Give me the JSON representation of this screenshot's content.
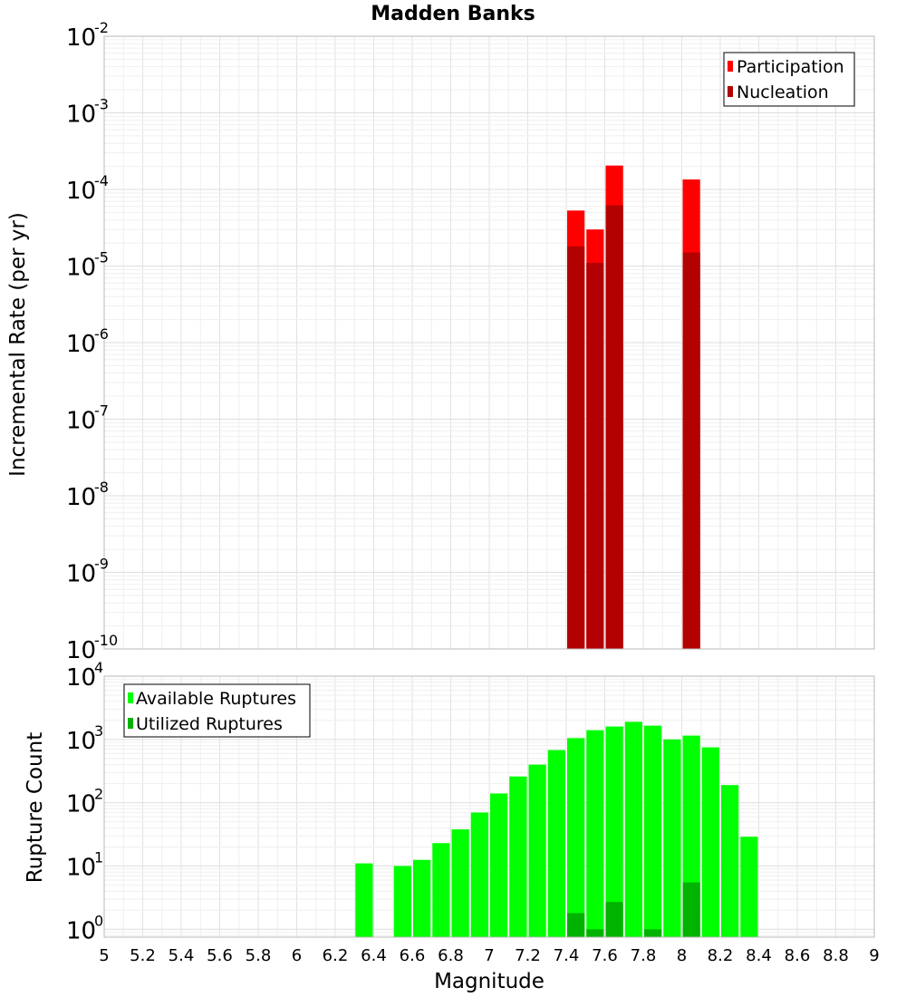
{
  "chart_data": [
    {
      "type": "bar",
      "title": "Madden Banks",
      "xlabel": "",
      "ylabel": "Incremental Rate (per yr)",
      "yscale": "log",
      "xlim": [
        5,
        9
      ],
      "ylim": [
        1e-10,
        0.01
      ],
      "grid": true,
      "legend_position": "top-right",
      "ytick_exponents": [
        "-2",
        "-3",
        "-4",
        "-5",
        "-6",
        "-7",
        "-8",
        "-9",
        "-10"
      ],
      "bin_width": 0.1,
      "series": [
        {
          "name": "Participation",
          "color": "#ff0000",
          "x": [
            7.45,
            7.55,
            7.65,
            8.05
          ],
          "values": [
            5.3e-05,
            3e-05,
            0.000205,
            0.000135
          ]
        },
        {
          "name": "Nucleation",
          "color": "#b30000",
          "x": [
            7.45,
            7.55,
            7.65,
            8.05
          ],
          "values": [
            1.8e-05,
            1.1e-05,
            6.2e-05,
            1.5e-05
          ]
        }
      ]
    },
    {
      "type": "bar",
      "title": "",
      "xlabel": "Magnitude",
      "ylabel": "Rupture Count",
      "yscale": "log",
      "xlim": [
        5,
        9
      ],
      "ylim": [
        0.75,
        10000
      ],
      "grid": true,
      "legend_position": "top-left",
      "xtick_labels": [
        "5",
        "5.2",
        "5.4",
        "5.6",
        "5.8",
        "6",
        "6.2",
        "6.4",
        "6.6",
        "6.8",
        "7",
        "7.2",
        "7.4",
        "7.6",
        "7.8",
        "8",
        "8.2",
        "8.4",
        "8.6",
        "8.8",
        "9"
      ],
      "ytick_exponents": [
        "4",
        "3",
        "2",
        "1",
        "0"
      ],
      "bin_width": 0.1,
      "series": [
        {
          "name": "Available Ruptures",
          "color": "#00ff00",
          "x": [
            6.35,
            6.55,
            6.65,
            6.75,
            6.85,
            6.95,
            7.05,
            7.15,
            7.25,
            7.35,
            7.45,
            7.55,
            7.65,
            7.75,
            7.85,
            7.95,
            8.05,
            8.15,
            8.25,
            8.35
          ],
          "values": [
            11,
            10,
            12.5,
            23,
            38,
            70,
            140,
            260,
            400,
            680,
            1050,
            1400,
            1600,
            1900,
            1650,
            1000,
            1150,
            750,
            190,
            29
          ]
        },
        {
          "name": "Utilized Ruptures",
          "color": "#00b300",
          "x": [
            7.45,
            7.55,
            7.65,
            7.85,
            8.05
          ],
          "values": [
            1.8,
            1.0,
            2.7,
            1.0,
            5.5
          ]
        }
      ]
    }
  ]
}
